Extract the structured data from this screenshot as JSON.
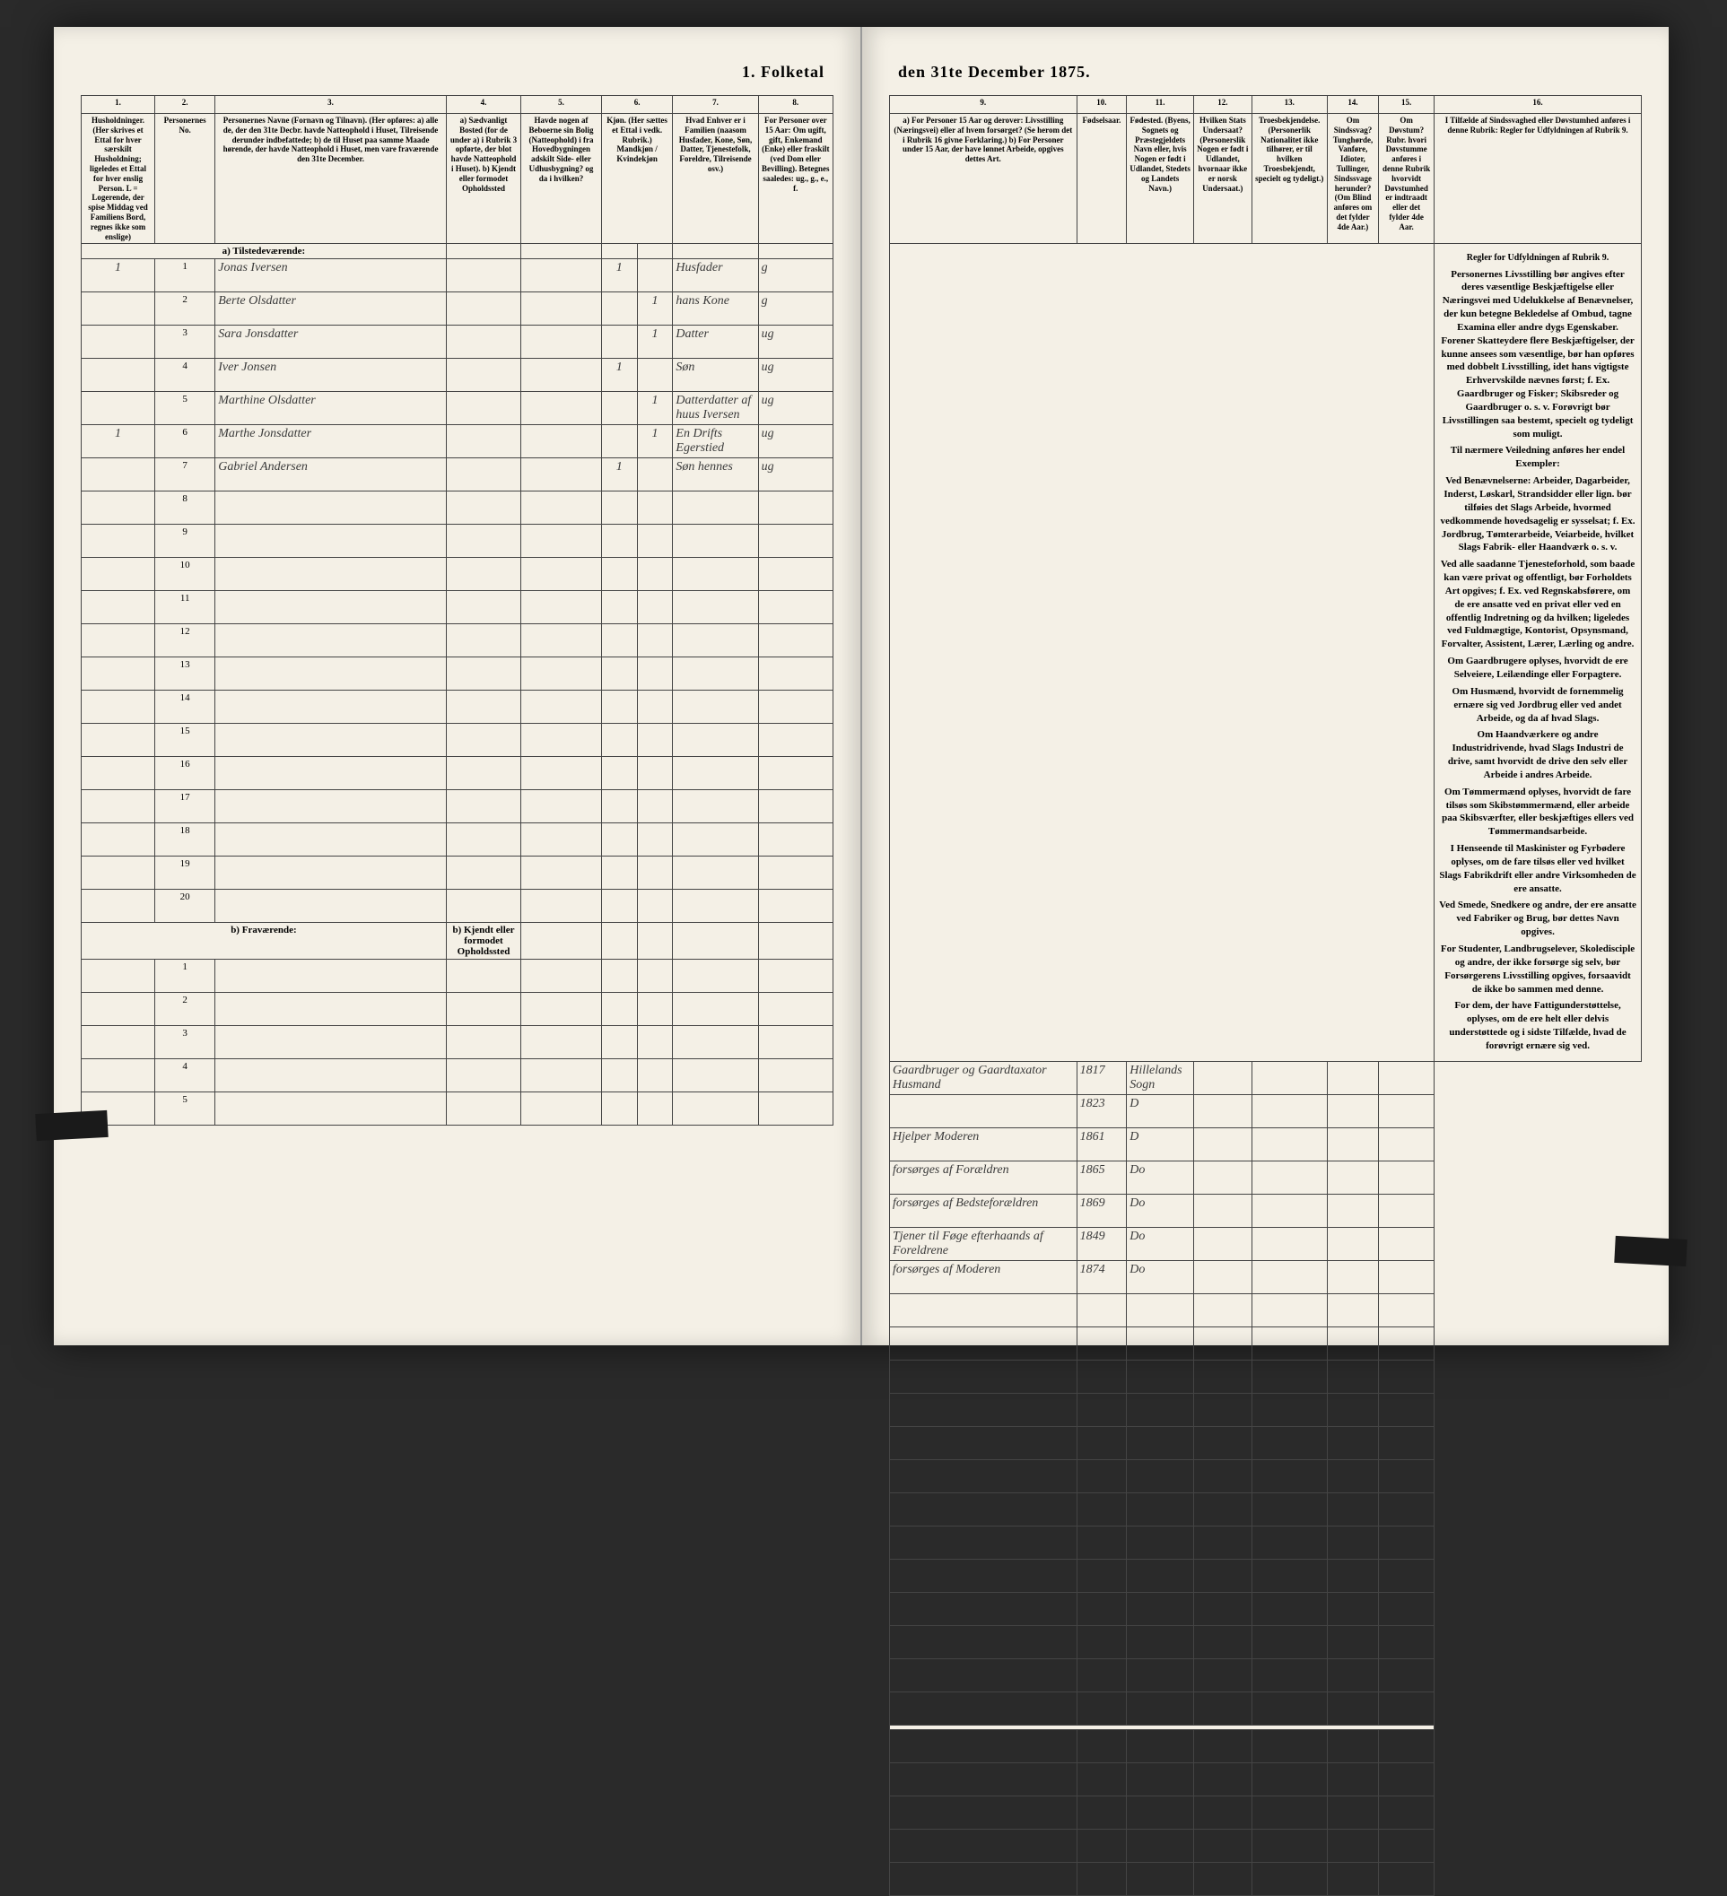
{
  "title_left": "1. Folketal",
  "title_right": "den 31te December 1875.",
  "columns_left": {
    "c1": "1.",
    "c2": "2.",
    "c3": "3.",
    "c4": "4.",
    "c5": "5.",
    "c6": "6.",
    "c7": "7.",
    "c8": "8."
  },
  "columns_right": {
    "c9": "9.",
    "c10": "10.",
    "c11": "11.",
    "c12": "12.",
    "c13": "13.",
    "c14": "14.",
    "c15": "15.",
    "c16": "16."
  },
  "headers_left": {
    "h1": "Husholdninger. (Her skrives et Ettal for hver særskilt Husholdning; ligeledes et Ettal for hver enslig Person. L = Logerende, der spise Middag ved Familiens Bord, regnes ikke som enslige)",
    "h2": "Personernes No.",
    "h3": "Personernes Navne (Fornavn og Tilnavn). (Her opføres: a) alle de, der den 31te Decbr. havde Natteophold i Huset, Tilreisende derunder indbefattede; b) de til Huset paa samme Maade hørende, der havde Natteophold i Huset, men vare fraværende den 31te December.",
    "h4": "a) Sædvanligt Bosted (for de under a) i Rubrik 3 opførte, der blot havde Natteophold i Huset). b) Kjendt eller formodet Opholdssted",
    "h5": "Havde nogen af Beboerne sin Bolig (Natteophold) i fra Hovedbygningen adskilt Side- eller Udhusbygning? og da i hvilken?",
    "h6": "Kjøn. (Her sættes et Ettal i vedk. Rubrik.) Mandkjøn / Kvindekjøn",
    "h7": "Hvad Enhver er i Familien (naasom Husfader, Kone, Søn, Datter, Tjenestefolk, Foreldre, Tilreisende osv.)",
    "h8": "For Personer over 15 Aar: Om ugift, gift, Enkemand (Enke) eller fraskilt (ved Dom eller Bevilling). Betegnes saaledes: ug., g., e., f."
  },
  "headers_right": {
    "h9": "a) For Personer 15 Aar og derover: Livsstilling (Næringsvei) eller af hvem forsørget? (Se herom det i Rubrik 16 givne Forklaring.) b) For Personer under 15 Aar, der have lønnet Arbeide, opgives dettes Art.",
    "h10": "Fødselsaar.",
    "h11": "Fødested. (Byens, Sognets og Præstegjeldets Navn eller, hvis Nogen er født i Udlandet, Stedets og Landets Navn.)",
    "h12": "Hvilken Stats Undersaat? (Personerslik Nogen er født i Udlandet, hvornaar ikke er norsk Undersaat.)",
    "h13": "Troesbekjendelse. (Personerlik Nationalitet ikke tilhører, er til hvilken Troesbekjendt, specielt og tydeligt.)",
    "h14": "Om Sindssvag? Tunghørde, Vanføre, Idioter, Tullinger, Sindssvage herunder? (Om Blind anføres om det fylder 4de Aar.)",
    "h15": "Om Døvstum? Rubr. hvori Døvstumme anføres i denne Rubrik hvorvidt Døvstumhed er indtraadt eller det fylder 4de Aar.",
    "h16": "I Tilfælde af Sindssvaghed eller Døvstumhed anføres i denne Rubrik: Regler for Udfyldningen af Rubrik 9."
  },
  "section_a": "a) Tilstedeværende:",
  "section_b": "b) Fraværende:",
  "section_b_note": "b) Kjendt eller formodet Opholdssted",
  "rows": [
    {
      "hh": "1",
      "num": "1",
      "name": "Jonas Iversen",
      "c4": "",
      "c5": "",
      "c6m": "1",
      "c6k": "",
      "c7": "Husfader",
      "c8": "g",
      "c9": "Gaardbruger og Gaardtaxator Husmand",
      "c10": "1817",
      "c11": "Hillelands Sogn",
      "c12": "",
      "c13": "",
      "c14": "",
      "c15": ""
    },
    {
      "hh": "",
      "num": "2",
      "name": "Berte Olsdatter",
      "c4": "",
      "c5": "",
      "c6m": "",
      "c6k": "1",
      "c7": "hans Kone",
      "c8": "g",
      "c9": "",
      "c10": "1823",
      "c11": "D",
      "c12": "",
      "c13": "",
      "c14": "",
      "c15": ""
    },
    {
      "hh": "",
      "num": "3",
      "name": "Sara Jonsdatter",
      "c4": "",
      "c5": "",
      "c6m": "",
      "c6k": "1",
      "c7": "Datter",
      "c8": "ug",
      "c9": "Hjelper Moderen",
      "c10": "1861",
      "c11": "D",
      "c12": "",
      "c13": "",
      "c14": "",
      "c15": ""
    },
    {
      "hh": "",
      "num": "4",
      "name": "Iver Jonsen",
      "c4": "",
      "c5": "",
      "c6m": "1",
      "c6k": "",
      "c7": "Søn",
      "c8": "ug",
      "c9": "forsørges af Forældren",
      "c10": "1865",
      "c11": "Do",
      "c12": "",
      "c13": "",
      "c14": "",
      "c15": ""
    },
    {
      "hh": "",
      "num": "5",
      "name": "Marthine Olsdatter",
      "c4": "",
      "c5": "",
      "c6m": "",
      "c6k": "1",
      "c7": "Datterdatter af huus Iversen",
      "c8": "ug",
      "c9": "forsørges af Bedsteforældren",
      "c10": "1869",
      "c11": "Do",
      "c12": "",
      "c13": "",
      "c14": "",
      "c15": ""
    },
    {
      "hh": "1",
      "num": "6",
      "name": "Marthe Jonsdatter",
      "c4": "",
      "c5": "",
      "c6m": "",
      "c6k": "1",
      "c7": "En Drifts Egerstied",
      "c8": "ug",
      "c9": "Tjener til Føge efterhaands af Foreldrene",
      "c10": "1849",
      "c11": "Do",
      "c12": "",
      "c13": "",
      "c14": "",
      "c15": ""
    },
    {
      "hh": "",
      "num": "7",
      "name": "Gabriel Andersen",
      "c4": "",
      "c5": "",
      "c6m": "1",
      "c6k": "",
      "c7": "Søn hennes",
      "c8": "ug",
      "c9": "forsørges af Moderen",
      "c10": "1874",
      "c11": "Do",
      "c12": "",
      "c13": "",
      "c14": "",
      "c15": ""
    }
  ],
  "empty_rows_a": [
    "8",
    "9",
    "10",
    "11",
    "12",
    "13",
    "14",
    "15",
    "16",
    "17",
    "18",
    "19",
    "20"
  ],
  "empty_rows_b": [
    "1",
    "2",
    "3",
    "4",
    "5"
  ],
  "instructions": {
    "heading": "Regler for Udfyldningen af Rubrik 9.",
    "p1": "Personernes Livsstilling bør angives efter deres væsentlige Beskjæftigelse eller Næringsvei med Udelukkelse af Benævnelser, der kun betegne Bekledelse af Ombud, tagne Examina eller andre dygs Egenskaber. Forener Skatteydere flere Beskjæftigelser, der kunne ansees som væsentlige, bør han opføres med dobbelt Livsstilling, idet hans vigtigste Erhvervskilde nævnes først; f. Ex. Gaardbruger og Fisker; Skibsreder og Gaardbruger o. s. v. Forøvrigt bør Livsstillingen saa bestemt, specielt og tydeligt som muligt.",
    "p2": "Til nærmere Veiledning anføres her endel Exempler:",
    "p3": "Ved Benævnelserne: Arbeider, Dagarbeider, Inderst, Løskarl, Strandsidder eller lign. bør tilføies det Slags Arbeide, hvormed vedkommende hovedsagelig er sysselsat; f. Ex. Jordbrug, Tømterarbeide, Veiarbeide, hvilket Slags Fabrik- eller Haandværk o. s. v.",
    "p4": "Ved alle saadanne Tjenesteforhold, som baade kan være privat og offentligt, bør Forholdets Art opgives; f. Ex. ved Regnskabsførere, om de ere ansatte ved en privat eller ved en offentlig Indretning og da hvilken; ligeledes ved Fuldmægtige, Kontorist, Opsynsmand, Forvalter, Assistent, Lærer, Lærling og andre.",
    "p5": "Om Gaardbrugere oplyses, hvorvidt de ere Selveiere, Leilændinge eller Forpagtere.",
    "p6": "Om Husmænd, hvorvidt de fornemmelig ernære sig ved Jordbrug eller ved andet Arbeide, og da af hvad Slags.",
    "p7": "Om Haandværkere og andre Industridrivende, hvad Slags Industri de drive, samt hvorvidt de drive den selv eller Arbeide i andres Arbeide.",
    "p8": "Om Tømmermænd oplyses, hvorvidt de fare tilsøs som Skibstømmermænd, eller arbeide paa Skibsværfter, eller beskjæftiges ellers ved Tømmermandsarbeide.",
    "p9": "I Henseende til Maskinister og Fyrbødere oplyses, om de fare tilsøs eller ved hvilket Slags Fabrikdrift eller andre Virksomheden de ere ansatte.",
    "p10": "Ved Smede, Snedkere og andre, der ere ansatte ved Fabriker og Brug, bør dettes Navn opgives.",
    "p11": "For Studenter, Landbrugselever, Skoledisciple og andre, der ikke forsørge sig selv, bør Forsørgerens Livsstilling opgives, forsaavidt de ikke bo sammen med denne.",
    "p12": "For dem, der have Fattigunderstøttelse, oplyses, om de ere helt eller delvis understøttede og i sidste Tilfælde, hvad de forøvrigt ernære sig ved."
  }
}
